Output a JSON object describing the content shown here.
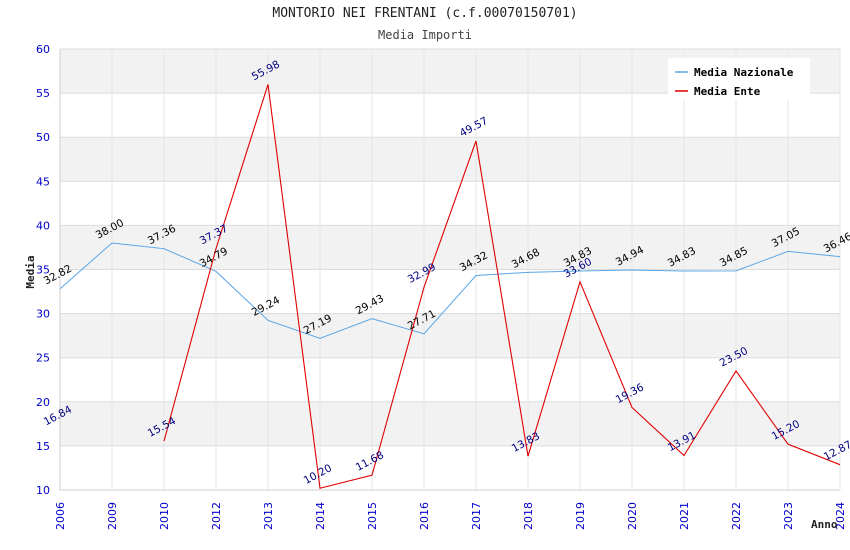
{
  "header": {
    "title": "MONTORIO NEI FRENTANI (c.f.00070150701)",
    "subtitle": "Media Importi"
  },
  "chart_data": {
    "type": "line",
    "title": "MONTORIO NEI FRENTANI (c.f.00070150701)",
    "subtitle": "Media Importi",
    "xlabel": "Anno",
    "ylabel": "Media",
    "categories": [
      "2006",
      "2009",
      "2010",
      "2012",
      "2013",
      "2014",
      "2015",
      "2016",
      "2017",
      "2018",
      "2019",
      "2020",
      "2021",
      "2022",
      "2023",
      "2024"
    ],
    "ylim": [
      10,
      60
    ],
    "yticks": [
      10,
      15,
      20,
      25,
      30,
      35,
      40,
      45,
      50,
      55,
      60
    ],
    "grid": true,
    "legend_position": "top-right",
    "series": [
      {
        "name": "Media Nazionale",
        "color": "#5aa5e6",
        "values": [
          32.82,
          38.0,
          37.36,
          34.79,
          29.24,
          27.19,
          29.43,
          27.71,
          34.32,
          34.68,
          34.83,
          34.94,
          34.83,
          34.85,
          37.05,
          36.46
        ],
        "labels": [
          "32.82",
          "38.00",
          "37.36",
          "34.79",
          "29.24",
          "27.19",
          "29.43",
          "27.71",
          "34.32",
          "34.68",
          "34.83",
          "34.94",
          "34.83",
          "34.85",
          "37.05",
          "36.46"
        ]
      },
      {
        "name": "Media Ente",
        "color": "#e00000",
        "values": [
          16.84,
          null,
          15.54,
          37.37,
          55.98,
          10.2,
          11.68,
          32.99,
          49.57,
          13.83,
          33.6,
          19.36,
          13.91,
          23.5,
          15.2,
          12.87
        ],
        "labels": [
          "16.84",
          "",
          "15.54",
          "37.37",
          "55.98",
          "10.20",
          "11.68",
          "32.99",
          "49.57",
          "13.83",
          "33.60",
          "19.36",
          "13.91",
          "23.50",
          "15.20",
          "12.87"
        ]
      }
    ]
  }
}
